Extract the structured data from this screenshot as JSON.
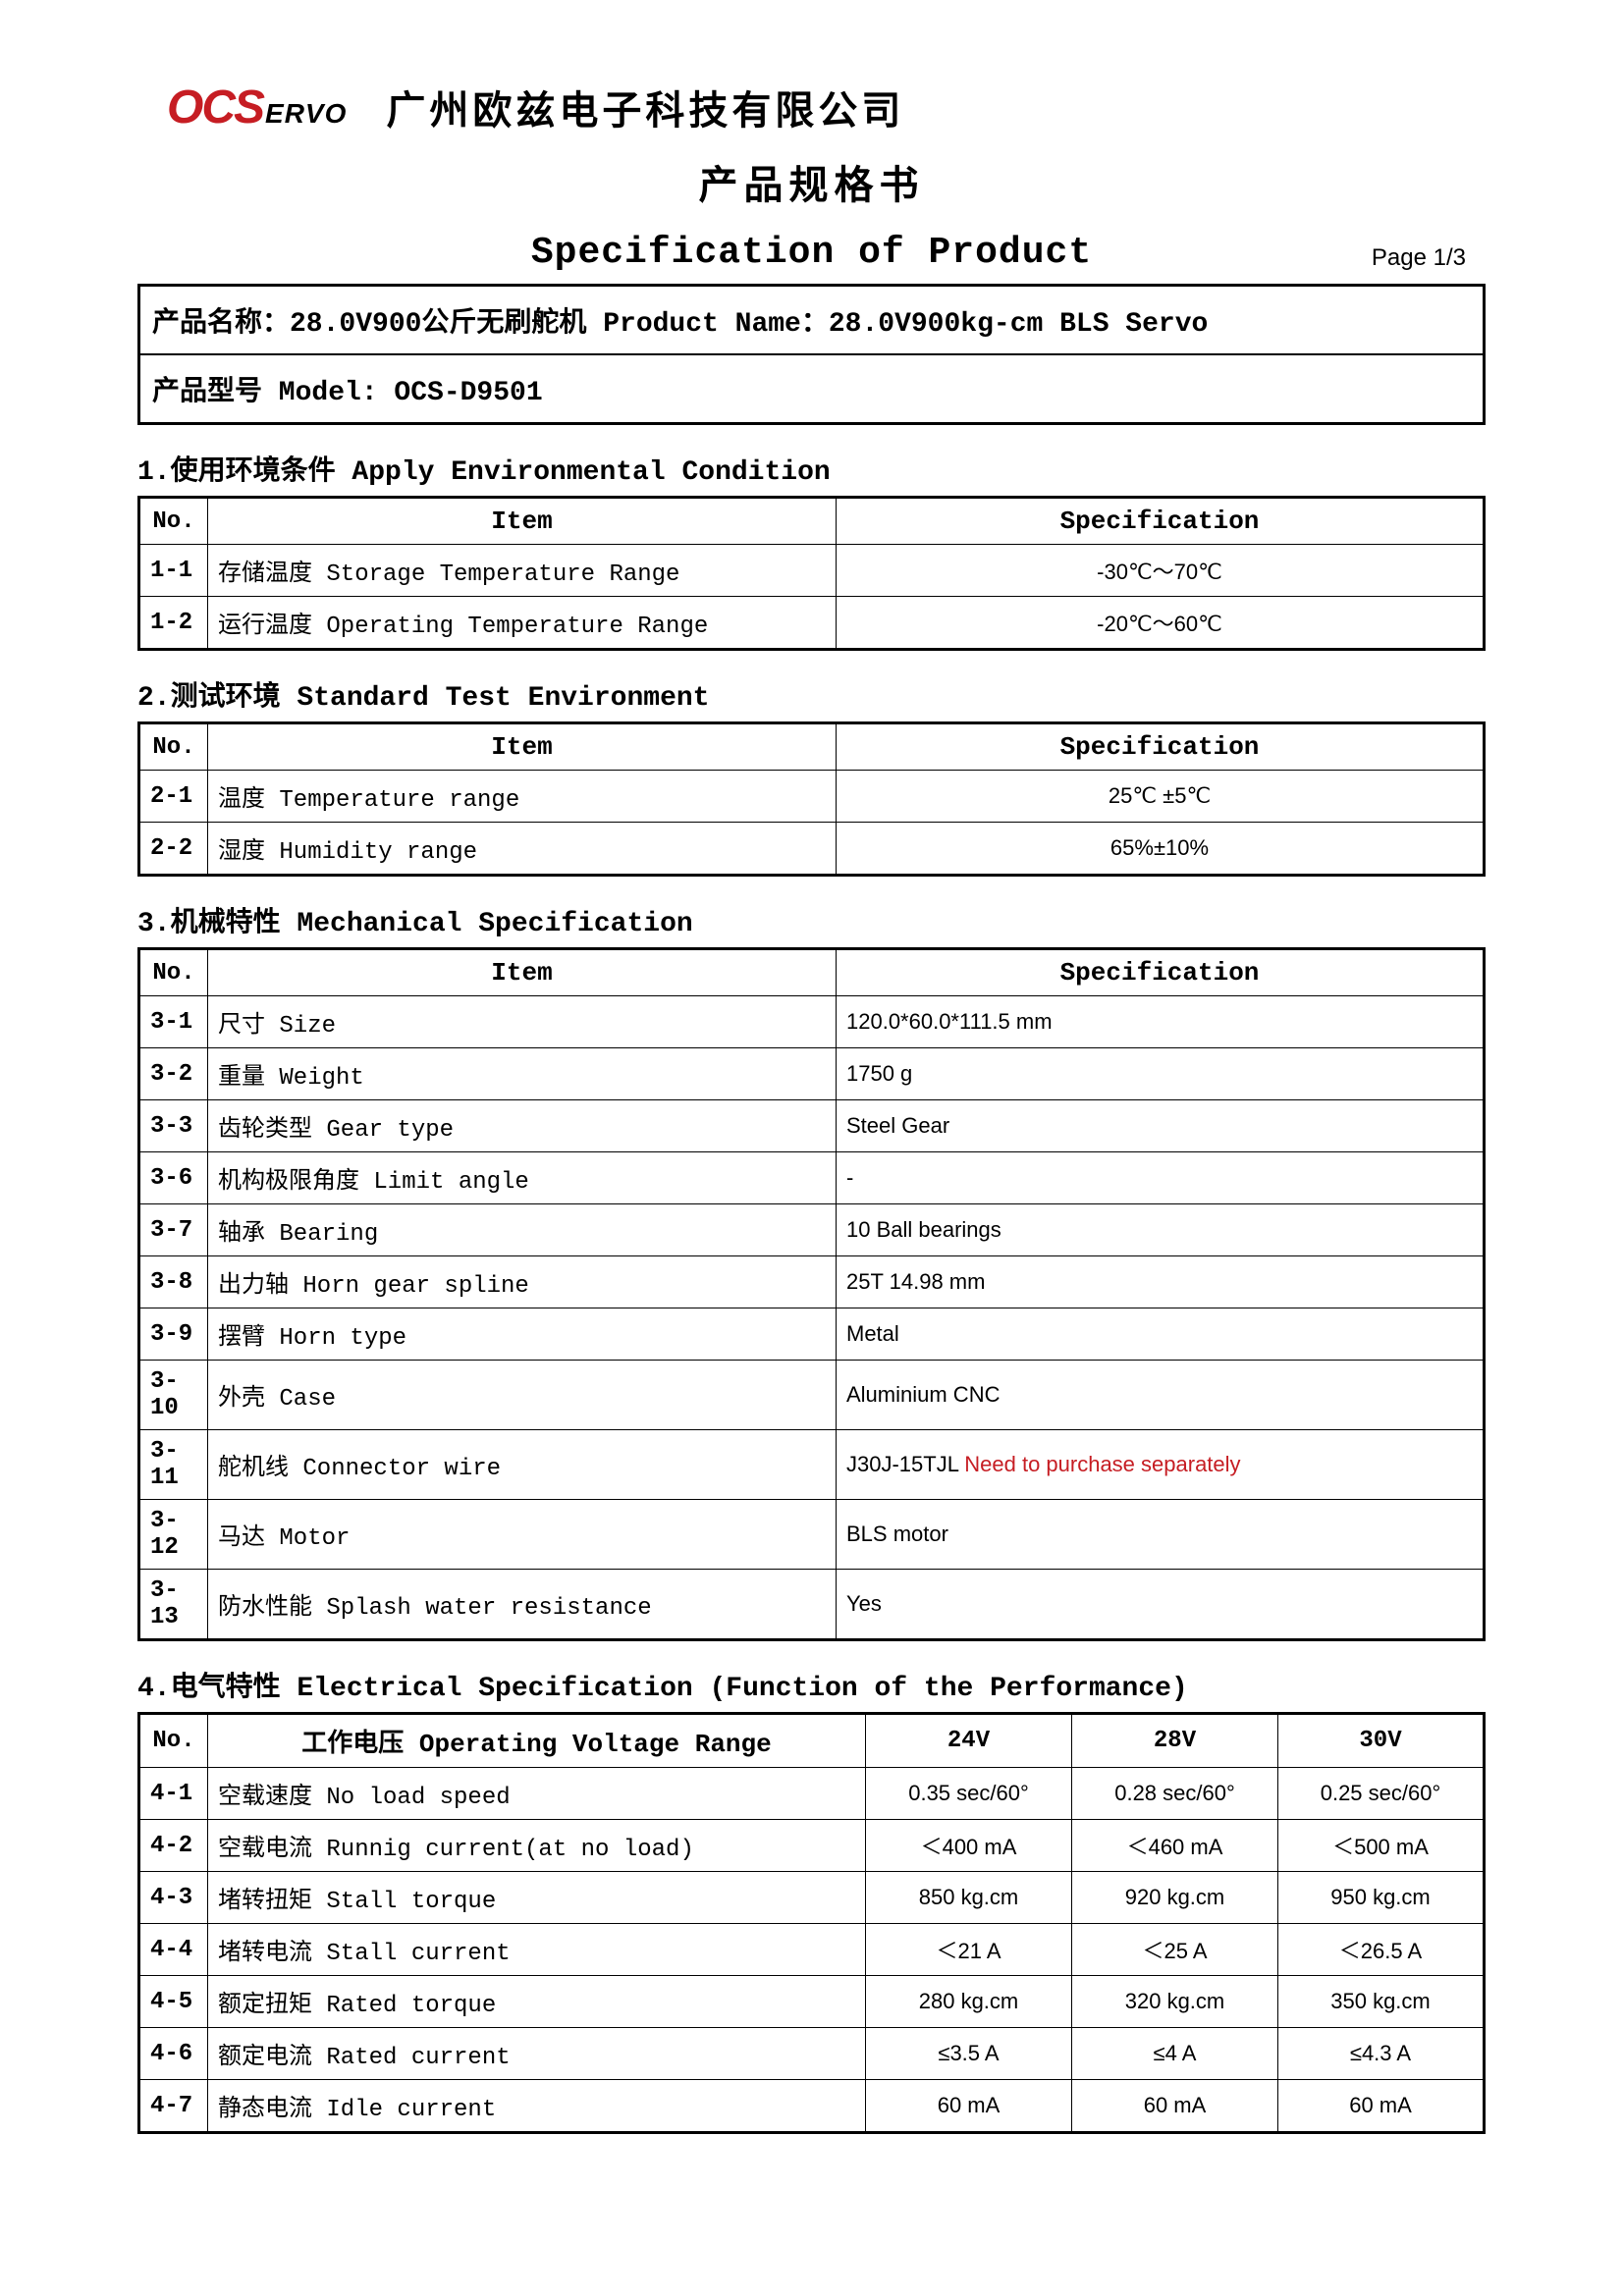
{
  "header": {
    "logo_ocs": "OCS",
    "logo_ervo": "ERVO",
    "company_cn": "广州欧兹电子科技有限公司",
    "subtitle_cn": "产品规格书",
    "spec_title": "Specification of Product",
    "page": "Page 1/3"
  },
  "product": {
    "name_line": "产品名称：28.0V900公斤无刷舵机  Product Name：28.0V900kg-cm BLS Servo",
    "model_line": "产品型号 Model: OCS-D9501"
  },
  "labels": {
    "no": "No.",
    "item": "Item",
    "specification": "Specification"
  },
  "section1": {
    "title": "1.使用环境条件  Apply Environmental Condition",
    "rows": [
      {
        "no": "1-1",
        "item": "存储温度  Storage Temperature Range",
        "spec": "-30℃～70℃"
      },
      {
        "no": "1-2",
        "item": "运行温度  Operating Temperature Range",
        "spec": "-20℃～60℃"
      }
    ]
  },
  "section2": {
    "title": "2.测试环境  Standard Test Environment",
    "rows": [
      {
        "no": "2-1",
        "item": "温度 Temperature range",
        "spec": "25℃ ±5℃"
      },
      {
        "no": "2-2",
        "item": "湿度 Humidity range",
        "spec": "65%±10%"
      }
    ]
  },
  "section3": {
    "title": "3.机械特性  Mechanical Specification",
    "rows": [
      {
        "no": "3-1",
        "item": "尺寸 Size",
        "spec": "120.0*60.0*111.5 mm"
      },
      {
        "no": "3-2",
        "item": "重量  Weight",
        "spec": "1750 g"
      },
      {
        "no": "3-3",
        "item": "齿轮类型  Gear type",
        "spec": "Steel Gear"
      },
      {
        "no": "3-6",
        "item": "机构极限角度  Limit angle",
        "spec": "-"
      },
      {
        "no": "3-7",
        "item": "轴承  Bearing",
        "spec": "10 Ball bearings"
      },
      {
        "no": "3-8",
        "item": "出力轴  Horn gear spline",
        "spec": "25T   14.98 mm"
      },
      {
        "no": "3-9",
        "item": "摆臂  Horn type",
        "spec": "Metal"
      },
      {
        "no": "3-10",
        "item": "外壳  Case",
        "spec": "Aluminium CNC"
      },
      {
        "no": "3-11",
        "item": "舵机线  Connector wire",
        "spec": "J30J-15TJL",
        "note": "Need to purchase separately"
      },
      {
        "no": "3-12",
        "item": "马达  Motor",
        "spec": "BLS motor"
      },
      {
        "no": "3-13",
        "item": "防水性能  Splash water resistance",
        "spec": "Yes"
      }
    ]
  },
  "section4": {
    "title": "4.电气特性  Electrical Specification (Function of the Performance)",
    "header_item": "工作电压  Operating Voltage Range",
    "voltages": [
      "24V",
      "28V",
      "30V"
    ],
    "rows": [
      {
        "no": "4-1",
        "item": "空载速度  No load  speed",
        "v": [
          "0.35 sec/60°",
          "0.28 sec/60°",
          "0.25 sec/60°"
        ]
      },
      {
        "no": "4-2",
        "item": "空载电流  Runnig current(at no load)",
        "v": [
          "＜400 mA",
          "＜460 mA",
          "＜500 mA"
        ]
      },
      {
        "no": "4-3",
        "item": "堵转扭矩 Stall torque",
        "v": [
          "850 kg.cm",
          "920 kg.cm",
          "950 kg.cm"
        ]
      },
      {
        "no": "4-4",
        "item": "堵转电流 Stall current",
        "v": [
          "＜21 A",
          "＜25 A",
          "＜26.5 A"
        ]
      },
      {
        "no": "4-5",
        "item": "额定扭矩 Rated torque",
        "v": [
          "280 kg.cm",
          "320 kg.cm",
          "350 kg.cm"
        ]
      },
      {
        "no": "4-6",
        "item": "额定电流 Rated current",
        "v": [
          "≤3.5 A",
          "≤4 A",
          "≤4.3 A"
        ]
      },
      {
        "no": "4-7",
        "item": "静态电流 Idle current",
        "v": [
          "60 mA",
          "60 mA",
          "60 mA"
        ]
      }
    ]
  }
}
